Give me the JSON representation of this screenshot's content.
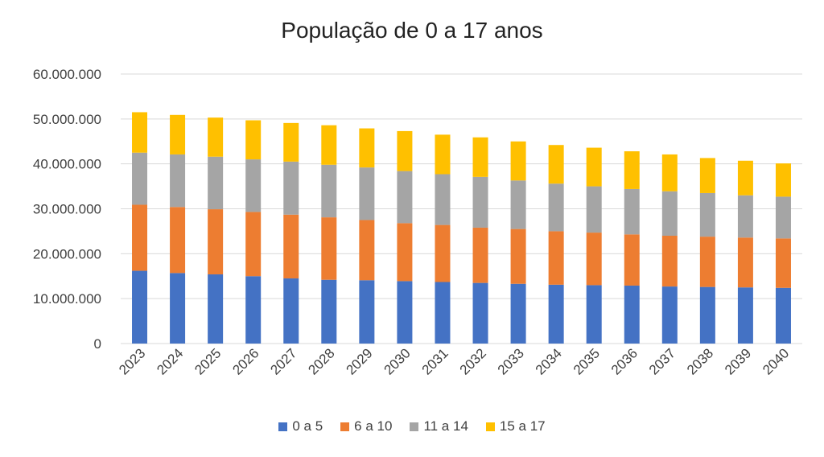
{
  "chart_data": {
    "type": "bar",
    "stacked": true,
    "title": "População de 0 a 17 anos",
    "xlabel": "",
    "ylabel": "",
    "ylim": [
      0,
      60000000
    ],
    "yticks": [
      "0",
      "10.000.000",
      "20.000.000",
      "30.000.000",
      "40.000.000",
      "50.000.000",
      "60.000.000"
    ],
    "ytick_values": [
      0,
      10000000,
      20000000,
      30000000,
      40000000,
      50000000,
      60000000
    ],
    "grid": true,
    "legend_position": "bottom",
    "categories": [
      "2023",
      "2024",
      "2025",
      "2026",
      "2027",
      "2028",
      "2029",
      "2030",
      "2031",
      "2032",
      "2033",
      "2034",
      "2035",
      "2036",
      "2037",
      "2038",
      "2039",
      "2040"
    ],
    "series": [
      {
        "name": "0 a 5",
        "color": "#4472C4",
        "values": [
          16200000,
          15700000,
          15400000,
          15000000,
          14500000,
          14200000,
          14100000,
          13900000,
          13700000,
          13500000,
          13300000,
          13100000,
          13000000,
          12900000,
          12700000,
          12600000,
          12500000,
          12400000
        ]
      },
      {
        "name": "6 a 10",
        "color": "#ED7D31",
        "values": [
          14700000,
          14700000,
          14500000,
          14300000,
          14200000,
          13900000,
          13400000,
          12900000,
          12700000,
          12300000,
          12200000,
          11900000,
          11700000,
          11400000,
          11300000,
          11200000,
          11100000,
          11000000
        ]
      },
      {
        "name": "11 a 14",
        "color": "#A5A5A5",
        "values": [
          11600000,
          11700000,
          11700000,
          11700000,
          11800000,
          11700000,
          11700000,
          11600000,
          11300000,
          11300000,
          10800000,
          10600000,
          10300000,
          10100000,
          9900000,
          9700000,
          9400000,
          9300000
        ]
      },
      {
        "name": "15 a 17",
        "color": "#FFC000",
        "values": [
          9000000,
          8800000,
          8700000,
          8700000,
          8600000,
          8800000,
          8700000,
          8900000,
          8800000,
          8800000,
          8700000,
          8600000,
          8600000,
          8400000,
          8200000,
          7800000,
          7700000,
          7400000
        ]
      }
    ]
  }
}
